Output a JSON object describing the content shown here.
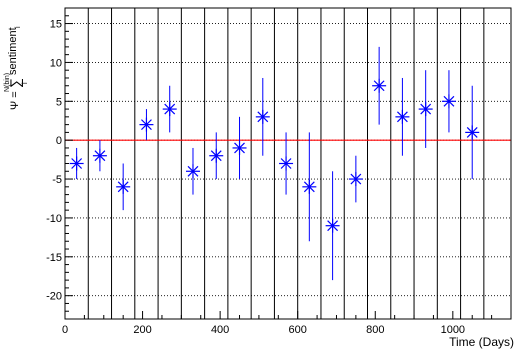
{
  "chart_data": {
    "type": "scatter",
    "xlabel": "Time (Days)",
    "ylabel": {
      "symbol": "Ψ =",
      "sum_sign": "∑",
      "sum_upper": "N(bin)",
      "sum_lower": "i",
      "summand": "sentiment",
      "summand_sub": "i"
    },
    "xlim": [
      0,
      1150
    ],
    "ylim": [
      -23,
      17
    ],
    "x_ticks": [
      0,
      200,
      400,
      600,
      800,
      1000
    ],
    "y_ticks": [
      -20,
      -15,
      -10,
      -5,
      0,
      5,
      10,
      15
    ],
    "grid": true,
    "x_grid_lines": [
      60,
      120,
      180,
      240,
      300,
      360,
      420,
      480,
      540,
      600,
      660,
      720,
      780,
      840,
      900,
      960,
      1020,
      1080
    ],
    "reference_line": {
      "y": 0,
      "color": "#ff0000"
    },
    "marker_color": "#0000ff",
    "points": [
      {
        "x": 30,
        "y": -3,
        "err_low": 2,
        "err_high": 2
      },
      {
        "x": 90,
        "y": -2,
        "err_low": 2,
        "err_high": 2
      },
      {
        "x": 150,
        "y": -6,
        "err_low": 3,
        "err_high": 3
      },
      {
        "x": 210,
        "y": 2,
        "err_low": 2,
        "err_high": 2
      },
      {
        "x": 270,
        "y": 4,
        "err_low": 3,
        "err_high": 3
      },
      {
        "x": 330,
        "y": -4,
        "err_low": 3,
        "err_high": 3
      },
      {
        "x": 390,
        "y": -2,
        "err_low": 3,
        "err_high": 3
      },
      {
        "x": 450,
        "y": -1,
        "err_low": 4,
        "err_high": 4
      },
      {
        "x": 510,
        "y": 3,
        "err_low": 5,
        "err_high": 5
      },
      {
        "x": 570,
        "y": -3,
        "err_low": 4,
        "err_high": 4
      },
      {
        "x": 630,
        "y": -6,
        "err_low": 7,
        "err_high": 7
      },
      {
        "x": 690,
        "y": -11,
        "err_low": 7,
        "err_high": 7
      },
      {
        "x": 750,
        "y": -5,
        "err_low": 3,
        "err_high": 3
      },
      {
        "x": 810,
        "y": 7,
        "err_low": 5,
        "err_high": 5
      },
      {
        "x": 870,
        "y": 3,
        "err_low": 5,
        "err_high": 5
      },
      {
        "x": 930,
        "y": 4,
        "err_low": 5,
        "err_high": 5
      },
      {
        "x": 990,
        "y": 5,
        "err_low": 4,
        "err_high": 4
      },
      {
        "x": 1050,
        "y": 1,
        "err_low": 6,
        "err_high": 6
      }
    ]
  }
}
